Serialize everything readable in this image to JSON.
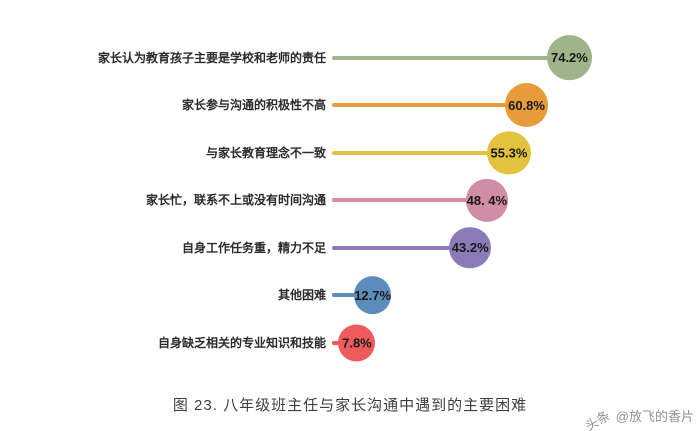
{
  "chart_data": {
    "type": "bar",
    "variant": "horizontal-lollipop",
    "categories": [
      "家长认为教育孩子主要是学校和老师的责任",
      "家长参与沟通的积极性不高",
      "与家长教育理念不一致",
      "家长忙，联系不上或没有时间沟通",
      "自身工作任务重，精力不足",
      "其他困难",
      "自身缺乏相关的专业知识和技能"
    ],
    "values": [
      74.2,
      60.8,
      55.3,
      48.4,
      43.2,
      12.7,
      7.8
    ],
    "value_labels": [
      "74.2%",
      "60.8%",
      "55.3%",
      "48. 4%",
      "43.2%",
      "12.7%",
      "7.8%"
    ],
    "colors": [
      "#9fb489",
      "#e79c3c",
      "#e3c23e",
      "#d18da5",
      "#8a7ab8",
      "#5c8cba",
      "#ef5a5a"
    ],
    "title": "图 23. 八年级班主任与家长沟通中遇到的主要困难",
    "xlabel": "",
    "ylabel": "",
    "xlim": [
      0,
      100
    ],
    "grid": false,
    "legend": "none"
  },
  "caption": "图 23. 八年级班主任与家长沟通中遇到的主要困难",
  "watermark": {
    "brand": "头条",
    "handle": "@放飞的香片"
  }
}
